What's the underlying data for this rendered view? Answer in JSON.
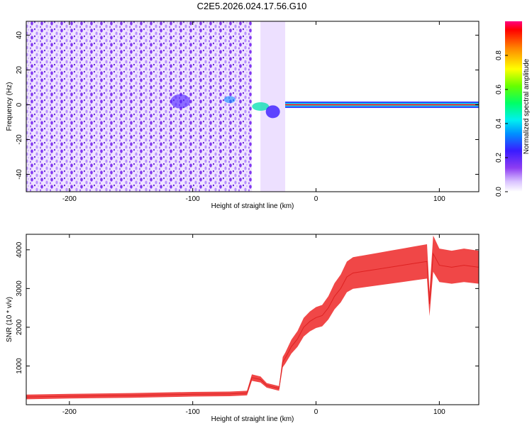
{
  "title": "C2E5.2026.024.17.56.G10",
  "chart_data": [
    {
      "type": "heatmap",
      "xlabel": "Height of straight line (km)",
      "ylabel": "Frequency (Hz)",
      "xlim": [
        -235,
        132
      ],
      "ylim": [
        -50,
        48
      ],
      "xticks": [
        -200,
        -100,
        0,
        100
      ],
      "xtick_labels": [
        "-200",
        "-100",
        "0",
        "100"
      ],
      "yticks": [
        -40,
        -20,
        0,
        20,
        40
      ],
      "ytick_labels": [
        "-40",
        "-20",
        "0",
        "20",
        "40"
      ],
      "colorbar": {
        "label": "Normalized spectral amplitude",
        "range": [
          0,
          1
        ],
        "ticks": [
          0.0,
          0.2,
          0.4,
          0.6,
          0.8
        ],
        "tick_labels": [
          "0.0",
          "0.2",
          "0.4",
          "0.6",
          "0.8"
        ]
      },
      "features": [
        {
          "name": "noise region",
          "x_range": [
            -235,
            -52
          ],
          "freq_range": [
            -50,
            48
          ],
          "amplitude": 0.15
        },
        {
          "name": "transition",
          "x_range": [
            -52,
            -25
          ],
          "freq_range": [
            -10,
            5
          ],
          "amplitude": 0.35
        },
        {
          "name": "carrier line",
          "x_range": [
            -25,
            132
          ],
          "frequency": 0,
          "amplitude": 0.95
        }
      ]
    },
    {
      "type": "line",
      "xlabel": "Height of straight line (km)",
      "ylabel": "SNR (10 * v/v)",
      "xlim": [
        -235,
        132
      ],
      "ylim": [
        0,
        4400
      ],
      "xticks": [
        -200,
        -100,
        0,
        100
      ],
      "xtick_labels": [
        "-200",
        "-100",
        "0",
        "100"
      ],
      "yticks": [
        1000,
        2000,
        3000,
        4000
      ],
      "ytick_labels": [
        "1000",
        "2000",
        "3000",
        "4000"
      ],
      "color": "#ee3333",
      "series": [
        {
          "name": "SNR",
          "x": [
            -235,
            -200,
            -150,
            -100,
            -70,
            -56,
            -52,
            -45,
            -40,
            -30,
            -27,
            -25,
            -20,
            -15,
            -10,
            -5,
            0,
            5,
            10,
            15,
            20,
            25,
            30,
            40,
            50,
            60,
            70,
            80,
            90,
            92,
            95,
            100,
            110,
            120,
            132
          ],
          "y": [
            200,
            220,
            240,
            270,
            280,
            300,
            700,
            650,
            500,
            420,
            1100,
            1200,
            1500,
            1700,
            2000,
            2150,
            2250,
            2300,
            2500,
            2800,
            3000,
            3300,
            3400,
            3450,
            3500,
            3550,
            3600,
            3650,
            3700,
            2600,
            3900,
            3600,
            3550,
            3600,
            3550
          ]
        }
      ]
    }
  ]
}
